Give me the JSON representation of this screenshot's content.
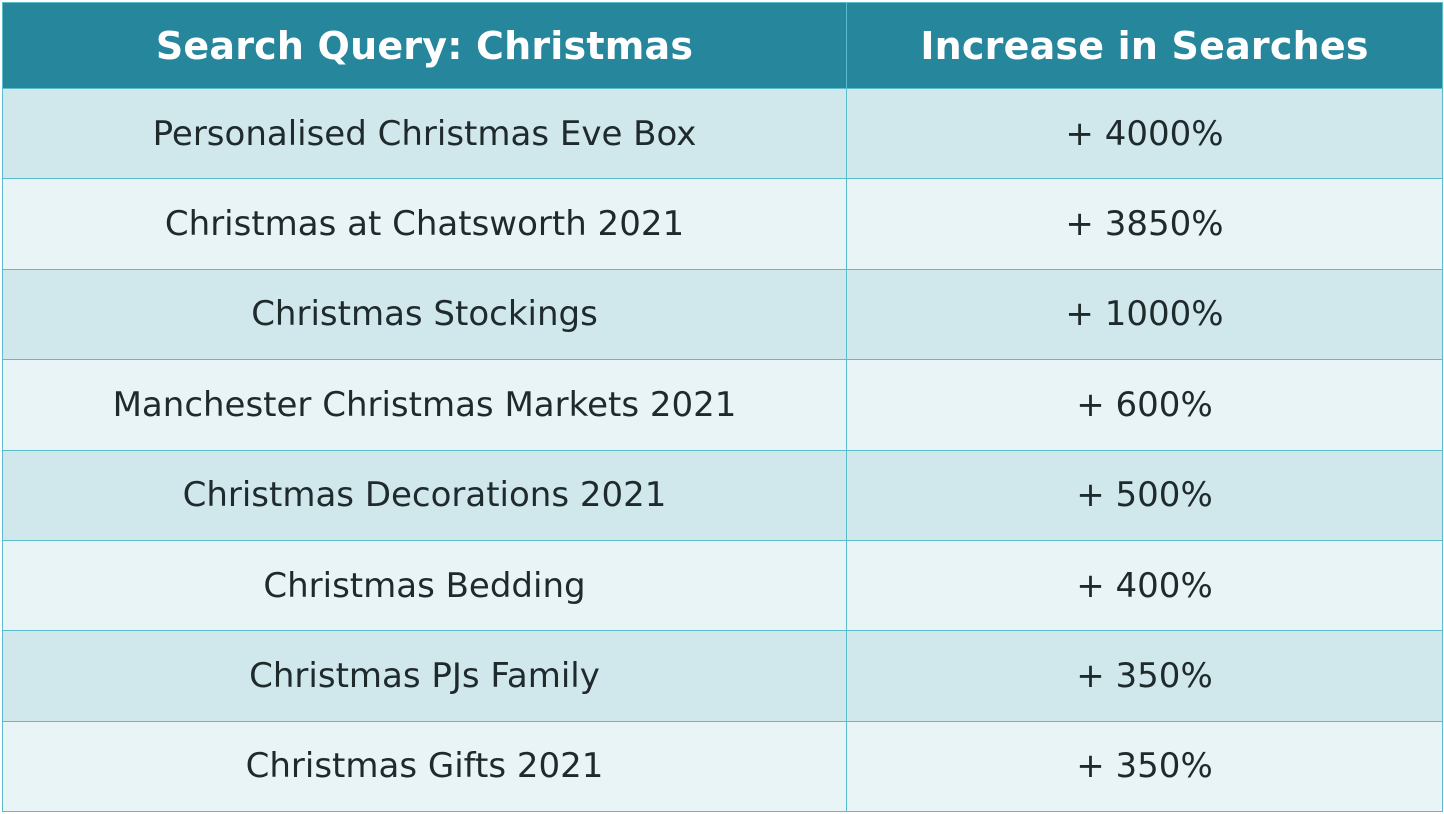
{
  "table": {
    "headers": [
      "Search Query: Christmas",
      "Increase in Searches"
    ],
    "rows": [
      [
        "Personalised Christmas Eve Box",
        "+ 4000%"
      ],
      [
        "Christmas at Chatsworth 2021",
        "+ 3850%"
      ],
      [
        "Christmas Stockings",
        "+ 1000%"
      ],
      [
        "Manchester Christmas Markets 2021",
        "+ 600%"
      ],
      [
        "Christmas Decorations 2021",
        "+ 500%"
      ],
      [
        "Christmas Bedding",
        "+ 400%"
      ],
      [
        "Christmas PJs Family",
        "+ 350%"
      ],
      [
        "Christmas Gifts 2021",
        "+ 350%"
      ]
    ]
  },
  "colors": {
    "header_bg": "#25869c",
    "header_text": "#ffffff",
    "row_dark": "#d0e7ec",
    "row_light": "#e8f4f6",
    "border": "#5bbccd",
    "cell_text": "#1f2a2c"
  }
}
